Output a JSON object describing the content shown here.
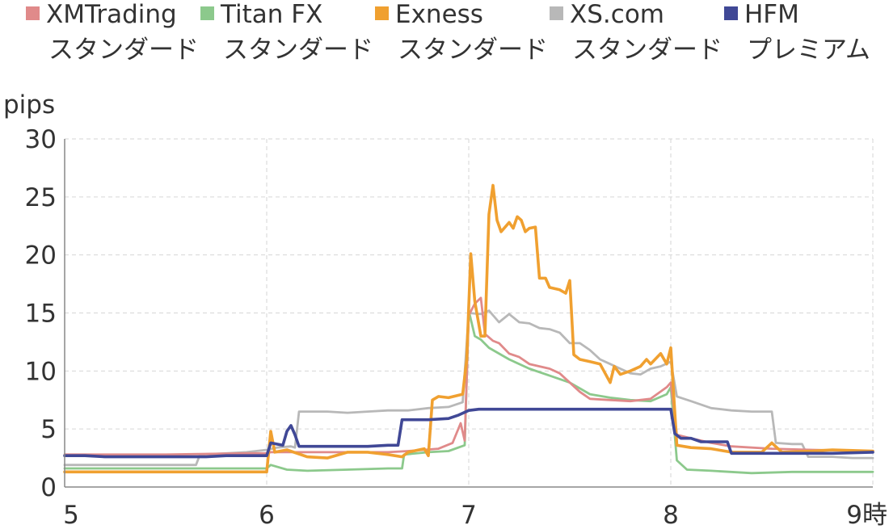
{
  "chart_data": {
    "type": "line",
    "ylabel": "pips",
    "ylim": [
      0,
      30
    ],
    "yticks": [
      "0",
      "5",
      "10",
      "15",
      "20",
      "25",
      "30"
    ],
    "xlim": [
      5,
      9
    ],
    "xticks": [
      "5",
      "6",
      "7",
      "8",
      "9時"
    ],
    "grid": true,
    "legend_position": "top",
    "series": [
      {
        "name": "XMTrading",
        "name2": "スタンダード",
        "color": "#e08a8a",
        "points": [
          [
            5.0,
            2.8
          ],
          [
            5.5,
            2.8
          ],
          [
            5.9,
            2.9
          ],
          [
            6.0,
            2.9
          ],
          [
            6.02,
            3.0
          ],
          [
            6.3,
            3.0
          ],
          [
            6.6,
            3.0
          ],
          [
            6.7,
            3.1
          ],
          [
            6.85,
            3.3
          ],
          [
            6.92,
            3.8
          ],
          [
            6.96,
            5.5
          ],
          [
            6.98,
            4.0
          ],
          [
            7.0,
            14.8
          ],
          [
            7.03,
            15.8
          ],
          [
            7.06,
            16.3
          ],
          [
            7.08,
            13.2
          ],
          [
            7.12,
            12.6
          ],
          [
            7.15,
            12.4
          ],
          [
            7.2,
            11.5
          ],
          [
            7.25,
            11.2
          ],
          [
            7.3,
            10.6
          ],
          [
            7.35,
            10.4
          ],
          [
            7.4,
            10.2
          ],
          [
            7.45,
            9.8
          ],
          [
            7.5,
            9.0
          ],
          [
            7.55,
            8.2
          ],
          [
            7.6,
            7.6
          ],
          [
            7.7,
            7.5
          ],
          [
            7.8,
            7.4
          ],
          [
            7.9,
            7.6
          ],
          [
            7.98,
            8.6
          ],
          [
            8.0,
            9.0
          ],
          [
            8.03,
            4.5
          ],
          [
            8.1,
            4.2
          ],
          [
            8.2,
            3.8
          ],
          [
            8.3,
            3.5
          ],
          [
            8.5,
            3.3
          ],
          [
            8.7,
            3.2
          ],
          [
            9.0,
            3.1
          ]
        ]
      },
      {
        "name": "Titan FX",
        "name2": "スタンダード",
        "color": "#8cc98c",
        "points": [
          [
            5.0,
            1.6
          ],
          [
            5.5,
            1.6
          ],
          [
            5.95,
            1.6
          ],
          [
            6.0,
            1.6
          ],
          [
            6.02,
            1.9
          ],
          [
            6.1,
            1.5
          ],
          [
            6.2,
            1.4
          ],
          [
            6.4,
            1.5
          ],
          [
            6.6,
            1.6
          ],
          [
            6.67,
            1.6
          ],
          [
            6.68,
            2.8
          ],
          [
            6.8,
            3.0
          ],
          [
            6.9,
            3.1
          ],
          [
            6.98,
            3.6
          ],
          [
            7.0,
            15.2
          ],
          [
            7.03,
            13.0
          ],
          [
            7.06,
            12.7
          ],
          [
            7.1,
            12.0
          ],
          [
            7.2,
            11.0
          ],
          [
            7.3,
            10.2
          ],
          [
            7.4,
            9.6
          ],
          [
            7.5,
            9.0
          ],
          [
            7.6,
            8.0
          ],
          [
            7.7,
            7.7
          ],
          [
            7.8,
            7.5
          ],
          [
            7.9,
            7.4
          ],
          [
            7.98,
            8.0
          ],
          [
            8.0,
            8.6
          ],
          [
            8.03,
            2.3
          ],
          [
            8.08,
            1.5
          ],
          [
            8.2,
            1.4
          ],
          [
            8.4,
            1.2
          ],
          [
            8.6,
            1.3
          ],
          [
            8.8,
            1.3
          ],
          [
            9.0,
            1.3
          ]
        ]
      },
      {
        "name": "Exness",
        "name2": "スタンダード",
        "color": "#f0a030",
        "points": [
          [
            5.0,
            1.3
          ],
          [
            5.5,
            1.3
          ],
          [
            5.95,
            1.3
          ],
          [
            6.0,
            1.3
          ],
          [
            6.02,
            4.8
          ],
          [
            6.04,
            3.0
          ],
          [
            6.1,
            3.2
          ],
          [
            6.2,
            2.6
          ],
          [
            6.3,
            2.5
          ],
          [
            6.4,
            3.0
          ],
          [
            6.5,
            3.0
          ],
          [
            6.6,
            2.8
          ],
          [
            6.67,
            2.6
          ],
          [
            6.7,
            3.0
          ],
          [
            6.78,
            3.3
          ],
          [
            6.8,
            2.7
          ],
          [
            6.82,
            7.5
          ],
          [
            6.85,
            7.8
          ],
          [
            6.9,
            7.7
          ],
          [
            6.97,
            8.0
          ],
          [
            6.99,
            11.0
          ],
          [
            7.01,
            20.1
          ],
          [
            7.03,
            16.0
          ],
          [
            7.06,
            13.0
          ],
          [
            7.08,
            13.0
          ],
          [
            7.1,
            23.5
          ],
          [
            7.12,
            26.0
          ],
          [
            7.14,
            23.0
          ],
          [
            7.16,
            22.0
          ],
          [
            7.2,
            22.8
          ],
          [
            7.22,
            22.3
          ],
          [
            7.24,
            23.3
          ],
          [
            7.26,
            23.0
          ],
          [
            7.28,
            22.0
          ],
          [
            7.3,
            22.3
          ],
          [
            7.33,
            22.4
          ],
          [
            7.35,
            18.0
          ],
          [
            7.38,
            18.0
          ],
          [
            7.4,
            17.2
          ],
          [
            7.45,
            17.0
          ],
          [
            7.48,
            16.7
          ],
          [
            7.5,
            17.8
          ],
          [
            7.52,
            11.4
          ],
          [
            7.55,
            11.0
          ],
          [
            7.6,
            10.8
          ],
          [
            7.65,
            10.6
          ],
          [
            7.7,
            9.0
          ],
          [
            7.72,
            10.4
          ],
          [
            7.75,
            9.7
          ],
          [
            7.8,
            10.0
          ],
          [
            7.85,
            10.4
          ],
          [
            7.88,
            11.0
          ],
          [
            7.9,
            10.6
          ],
          [
            7.95,
            11.5
          ],
          [
            7.98,
            10.6
          ],
          [
            8.0,
            12.0
          ],
          [
            8.03,
            3.6
          ],
          [
            8.1,
            3.4
          ],
          [
            8.2,
            3.3
          ],
          [
            8.3,
            3.0
          ],
          [
            8.45,
            3.0
          ],
          [
            8.5,
            3.8
          ],
          [
            8.55,
            3.0
          ],
          [
            8.7,
            3.1
          ],
          [
            8.8,
            3.2
          ],
          [
            9.0,
            3.1
          ]
        ]
      },
      {
        "name": "XS.com",
        "name2": "スタンダード",
        "color": "#b8b8b8",
        "points": [
          [
            5.0,
            1.9
          ],
          [
            5.5,
            1.9
          ],
          [
            5.65,
            1.9
          ],
          [
            5.67,
            2.8
          ],
          [
            5.8,
            2.9
          ],
          [
            5.9,
            3.0
          ],
          [
            6.0,
            3.2
          ],
          [
            6.05,
            3.4
          ],
          [
            6.12,
            3.5
          ],
          [
            6.14,
            3.4
          ],
          [
            6.16,
            6.5
          ],
          [
            6.3,
            6.5
          ],
          [
            6.4,
            6.4
          ],
          [
            6.5,
            6.5
          ],
          [
            6.6,
            6.6
          ],
          [
            6.7,
            6.6
          ],
          [
            6.8,
            6.8
          ],
          [
            6.9,
            6.9
          ],
          [
            6.97,
            7.3
          ],
          [
            7.0,
            15.0
          ],
          [
            7.06,
            14.9
          ],
          [
            7.1,
            15.2
          ],
          [
            7.15,
            14.2
          ],
          [
            7.2,
            14.9
          ],
          [
            7.25,
            14.2
          ],
          [
            7.3,
            14.1
          ],
          [
            7.35,
            13.7
          ],
          [
            7.4,
            13.6
          ],
          [
            7.45,
            13.3
          ],
          [
            7.5,
            12.4
          ],
          [
            7.55,
            12.4
          ],
          [
            7.6,
            11.8
          ],
          [
            7.65,
            11.0
          ],
          [
            7.7,
            10.6
          ],
          [
            7.75,
            10.2
          ],
          [
            7.8,
            9.8
          ],
          [
            7.85,
            9.7
          ],
          [
            7.9,
            10.2
          ],
          [
            7.95,
            10.4
          ],
          [
            8.0,
            10.8
          ],
          [
            8.03,
            7.8
          ],
          [
            8.1,
            7.4
          ],
          [
            8.2,
            6.8
          ],
          [
            8.3,
            6.6
          ],
          [
            8.4,
            6.5
          ],
          [
            8.5,
            6.5
          ],
          [
            8.52,
            3.8
          ],
          [
            8.6,
            3.7
          ],
          [
            8.65,
            3.7
          ],
          [
            8.68,
            2.6
          ],
          [
            8.8,
            2.6
          ],
          [
            8.9,
            2.5
          ],
          [
            9.0,
            2.5
          ]
        ]
      },
      {
        "name": "HFM",
        "name2": "プレミアム",
        "color": "#404896",
        "points": [
          [
            5.0,
            2.7
          ],
          [
            5.1,
            2.7
          ],
          [
            5.2,
            2.6
          ],
          [
            5.4,
            2.6
          ],
          [
            5.6,
            2.6
          ],
          [
            5.7,
            2.6
          ],
          [
            5.8,
            2.7
          ],
          [
            5.95,
            2.7
          ],
          [
            6.0,
            2.7
          ],
          [
            6.02,
            3.8
          ],
          [
            6.08,
            3.6
          ],
          [
            6.1,
            4.8
          ],
          [
            6.12,
            5.3
          ],
          [
            6.14,
            4.5
          ],
          [
            6.16,
            3.5
          ],
          [
            6.3,
            3.5
          ],
          [
            6.5,
            3.5
          ],
          [
            6.6,
            3.6
          ],
          [
            6.65,
            3.6
          ],
          [
            6.67,
            5.8
          ],
          [
            6.7,
            5.8
          ],
          [
            6.8,
            5.8
          ],
          [
            6.9,
            5.9
          ],
          [
            6.95,
            6.2
          ],
          [
            7.0,
            6.6
          ],
          [
            7.05,
            6.7
          ],
          [
            7.2,
            6.7
          ],
          [
            7.4,
            6.7
          ],
          [
            7.6,
            6.7
          ],
          [
            7.8,
            6.7
          ],
          [
            7.95,
            6.7
          ],
          [
            8.0,
            6.7
          ],
          [
            8.02,
            4.6
          ],
          [
            8.05,
            4.2
          ],
          [
            8.1,
            4.2
          ],
          [
            8.15,
            3.9
          ],
          [
            8.2,
            3.9
          ],
          [
            8.28,
            3.9
          ],
          [
            8.3,
            2.9
          ],
          [
            8.4,
            2.9
          ],
          [
            8.6,
            2.9
          ],
          [
            8.8,
            2.9
          ],
          [
            9.0,
            3.0
          ]
        ]
      }
    ]
  }
}
